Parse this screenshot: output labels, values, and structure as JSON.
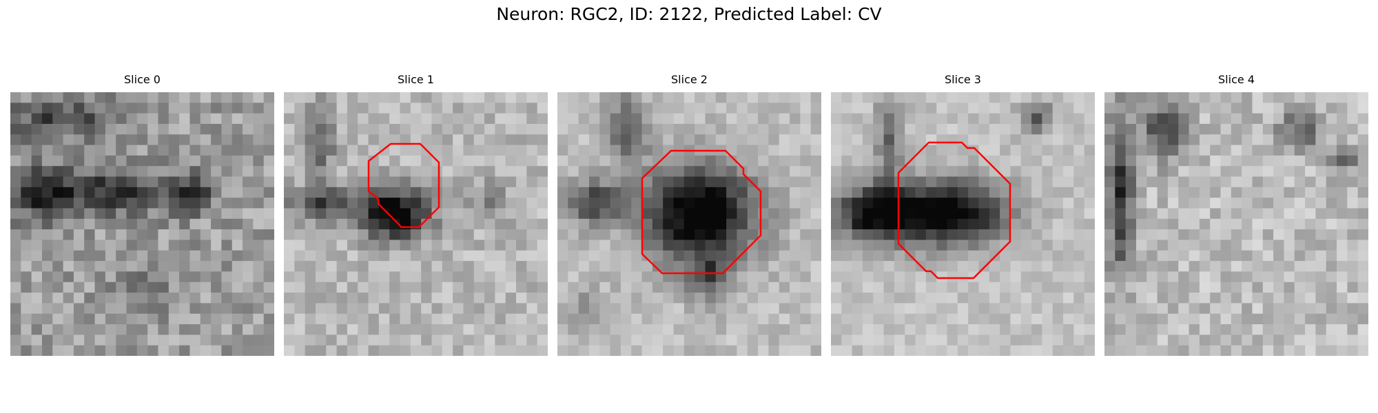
{
  "figure": {
    "title": "Neuron: RGC2, ID: 2122, Predicted Label: CV"
  },
  "slices": [
    {
      "label": "Slice 0",
      "has_contour": false
    },
    {
      "label": "Slice 1",
      "has_contour": true
    },
    {
      "label": "Slice 2",
      "has_contour": true
    },
    {
      "label": "Slice 3",
      "has_contour": true
    },
    {
      "label": "Slice 4",
      "has_contour": false
    }
  ],
  "colors": {
    "contour": "#ff0000",
    "background": "#ffffff"
  },
  "image_style": "grayscale microscopy patch, 25x25 pixels"
}
